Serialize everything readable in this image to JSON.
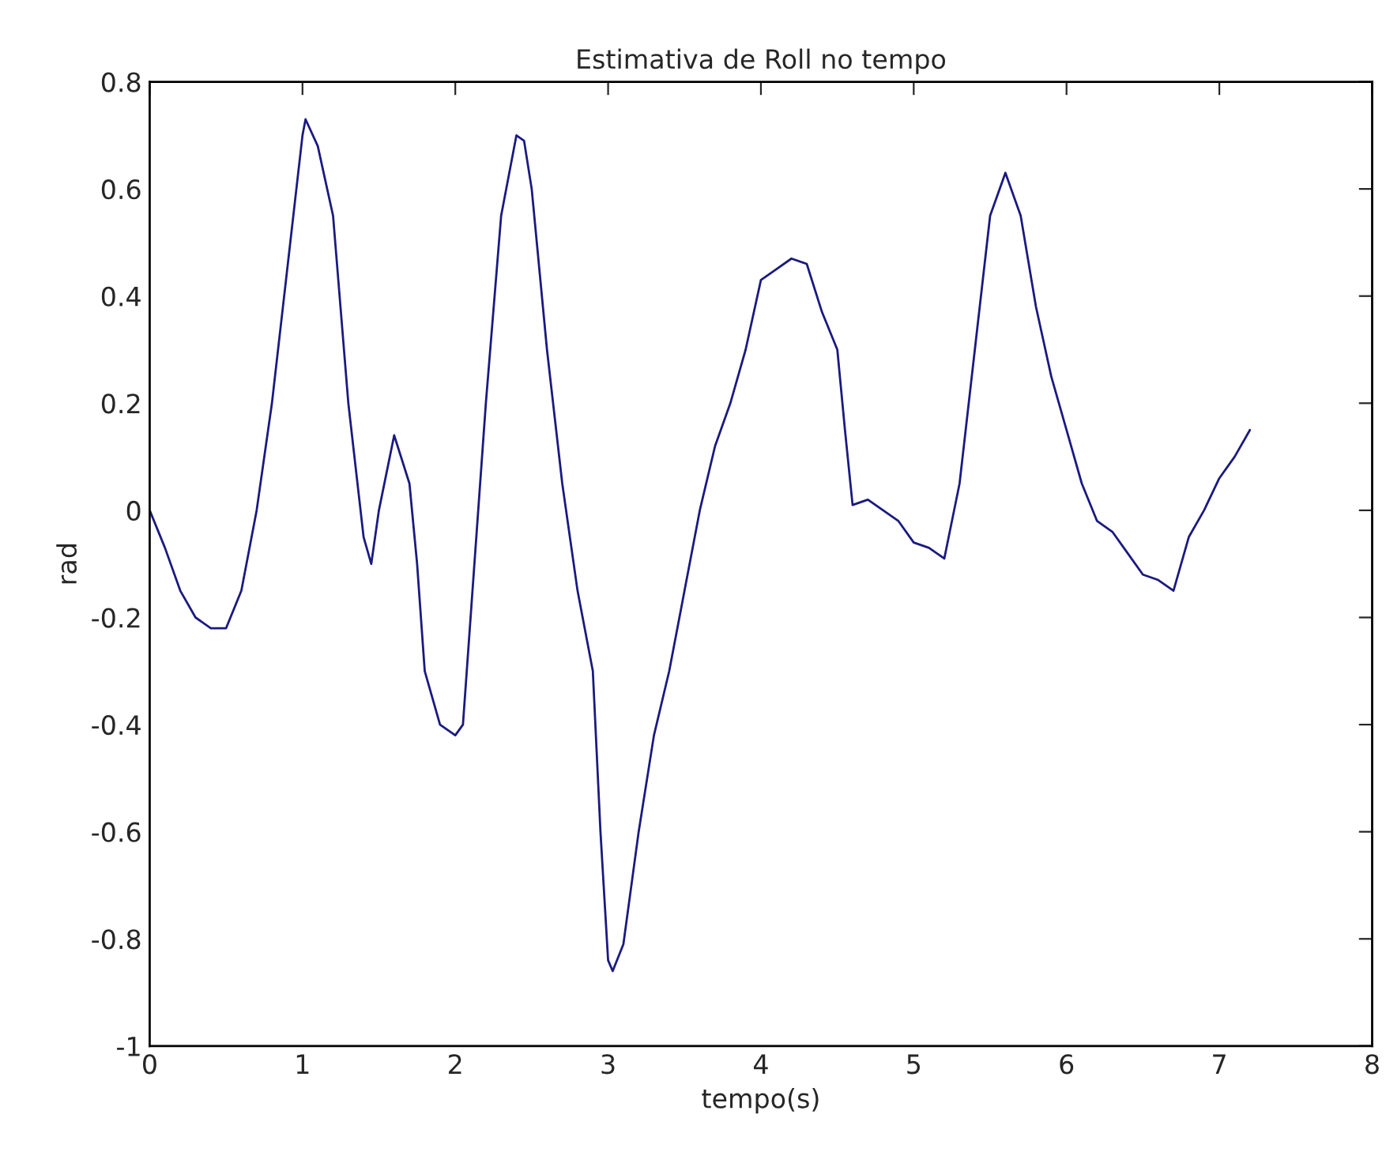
{
  "chart_data": {
    "type": "line",
    "title": "Estimativa de Roll no tempo",
    "xlabel": "tempo(s)",
    "ylabel": "rad",
    "xlim": [
      0,
      8
    ],
    "xticks": [
      0,
      1,
      2,
      3,
      4,
      5,
      6,
      7,
      8
    ],
    "ylim": [
      -1,
      0.8
    ],
    "yticks": [
      -1,
      -0.8,
      -0.6,
      -0.4,
      -0.2,
      0,
      0.2,
      0.4,
      0.6,
      0.8
    ],
    "grid": false,
    "series": [
      {
        "color": "#1a1a80",
        "x": [
          0,
          0.1,
          0.2,
          0.3,
          0.4,
          0.5,
          0.6,
          0.7,
          0.8,
          0.9,
          1.0,
          1.02,
          1.1,
          1.2,
          1.3,
          1.4,
          1.45,
          1.5,
          1.6,
          1.7,
          1.75,
          1.8,
          1.9,
          2.0,
          2.05,
          2.1,
          2.2,
          2.3,
          2.4,
          2.45,
          2.5,
          2.6,
          2.7,
          2.8,
          2.9,
          2.95,
          3.0,
          3.03,
          3.1,
          3.2,
          3.3,
          3.4,
          3.5,
          3.6,
          3.7,
          3.8,
          3.9,
          4.0,
          4.1,
          4.2,
          4.3,
          4.4,
          4.5,
          4.55,
          4.6,
          4.7,
          4.8,
          4.9,
          5.0,
          5.1,
          5.2,
          5.3,
          5.4,
          5.5,
          5.6,
          5.7,
          5.8,
          5.9,
          6.0,
          6.1,
          6.2,
          6.3,
          6.4,
          6.5,
          6.6,
          6.7,
          6.8,
          6.9,
          7.0,
          7.1,
          7.2
        ],
        "values": [
          0,
          -0.07,
          -0.15,
          -0.2,
          -0.22,
          -0.22,
          -0.15,
          0.0,
          0.2,
          0.45,
          0.7,
          0.73,
          0.68,
          0.55,
          0.2,
          -0.05,
          -0.1,
          0.0,
          0.14,
          0.05,
          -0.1,
          -0.3,
          -0.4,
          -0.42,
          -0.4,
          -0.2,
          0.2,
          0.55,
          0.7,
          0.69,
          0.6,
          0.3,
          0.05,
          -0.15,
          -0.3,
          -0.6,
          -0.84,
          -0.86,
          -0.81,
          -0.6,
          -0.42,
          -0.3,
          -0.15,
          0.0,
          0.12,
          0.2,
          0.3,
          0.43,
          0.45,
          0.47,
          0.46,
          0.37,
          0.3,
          0.15,
          0.01,
          0.02,
          0.0,
          -0.02,
          -0.06,
          -0.07,
          -0.09,
          0.05,
          0.3,
          0.55,
          0.63,
          0.55,
          0.38,
          0.25,
          0.15,
          0.05,
          -0.02,
          -0.04,
          -0.08,
          -0.12,
          -0.13,
          -0.15,
          -0.05,
          0.0,
          0.06,
          0.1,
          0.15
        ]
      }
    ]
  }
}
